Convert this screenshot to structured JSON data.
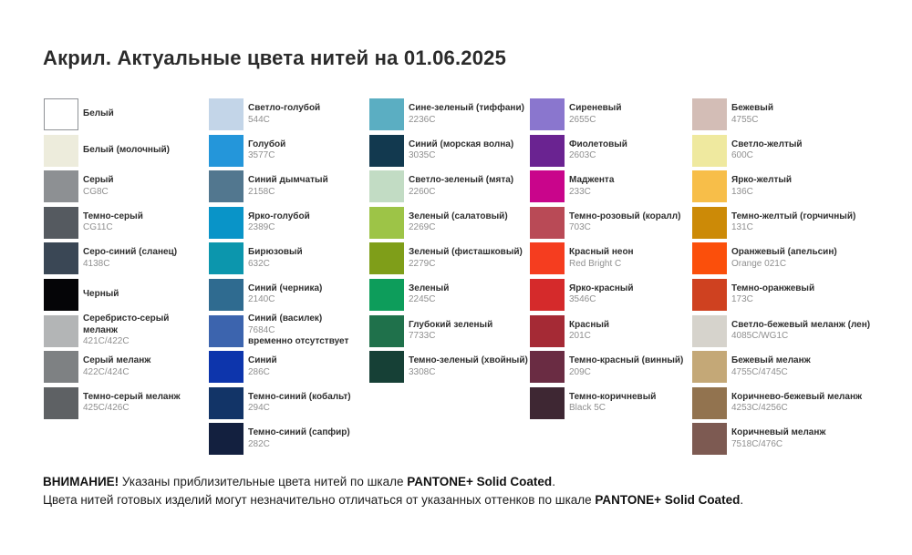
{
  "title": "Акрил. Актуальные цвета нитей на 01.06.2025",
  "palette": {
    "columns": [
      {
        "items": [
          {
            "name": "Белый",
            "code": "",
            "color": "#ffffff",
            "bordered": true
          },
          {
            "name": "Белый (молочный)",
            "code": "",
            "color": "#edecdc"
          },
          {
            "name": "Серый",
            "code": "CG8C",
            "color": "#8d9093"
          },
          {
            "name": "Темно-серый",
            "code": "CG11C",
            "color": "#555a60"
          },
          {
            "name": "Серо-синий (сланец)",
            "code": "4138C",
            "color": "#3a4755"
          },
          {
            "name": "Черный",
            "code": "",
            "color": "#050507"
          },
          {
            "name": "Серебристо-серый меланж",
            "code": "421C/422C",
            "color": "#b3b5b6"
          },
          {
            "name": "Серый меланж",
            "code": "422C/424C",
            "color": "#7e8183"
          },
          {
            "name": "Темно-серый меланж",
            "code": "425C/426C",
            "color": "#5e6164"
          }
        ]
      },
      {
        "items": [
          {
            "name": "Светло-голубой",
            "code": "544C",
            "color": "#c3d5e8"
          },
          {
            "name": "Голубой",
            "code": "3577C",
            "color": "#2496da"
          },
          {
            "name": "Синий дымчатый",
            "code": "2158C",
            "color": "#52778f"
          },
          {
            "name": "Ярко-голубой",
            "code": "2389C",
            "color": "#0994c8"
          },
          {
            "name": "Бирюзовый",
            "code": "632C",
            "color": "#0c96ad"
          },
          {
            "name": "Синий (черника)",
            "code": "2140C",
            "color": "#2f6b90"
          },
          {
            "name": "Синий (василек)",
            "code": "7684C",
            "color": "#3c64ae",
            "note": "временно отсутствует"
          },
          {
            "name": "Синий",
            "code": "286C",
            "color": "#0d35ac"
          },
          {
            "name": "Темно-синий (кобальт)",
            "code": "294C",
            "color": "#123467"
          },
          {
            "name": "Темно-синий (сапфир)",
            "code": "282C",
            "color": "#13203f"
          }
        ]
      },
      {
        "items": [
          {
            "name": "Сине-зеленый (тиффани)",
            "code": "2236C",
            "color": "#5baec2"
          },
          {
            "name": "Синий (морская волна)",
            "code": "3035C",
            "color": "#12394f"
          },
          {
            "name": "Светло-зеленый (мята)",
            "code": "2260C",
            "color": "#c2dcc4"
          },
          {
            "name": "Зеленый (салатовый)",
            "code": "2269C",
            "color": "#9dc447"
          },
          {
            "name": "Зеленый (фисташковый)",
            "code": "2279C",
            "color": "#7f9e19"
          },
          {
            "name": "Зеленый",
            "code": "2245C",
            "color": "#0d9d5b"
          },
          {
            "name": "Глубокий зеленый",
            "code": "7733C",
            "color": "#1f714b"
          },
          {
            "name": "Темно-зеленый (хвойный)",
            "code": "3308C",
            "color": "#164036"
          }
        ]
      },
      {
        "items": [
          {
            "name": "Сиреневый",
            "code": "2655C",
            "color": "#8a76ce"
          },
          {
            "name": "Фиолетовый",
            "code": "2603C",
            "color": "#6a2391"
          },
          {
            "name": "Маджента",
            "code": "233C",
            "color": "#c9058b"
          },
          {
            "name": "Темно-розовый (коралл)",
            "code": "703C",
            "color": "#b94a56"
          },
          {
            "name": "Красный неон",
            "code": "Red Bright C",
            "color": "#f53d1f"
          },
          {
            "name": "Ярко-красный",
            "code": "3546C",
            "color": "#d52a2b"
          },
          {
            "name": "Красный",
            "code": "201C",
            "color": "#a52a35"
          },
          {
            "name": "Темно-красный (винный)",
            "code": "209C",
            "color": "#6a2c43"
          },
          {
            "name": "Темно-коричневый",
            "code": "Black 5C",
            "color": "#3e2733"
          }
        ]
      },
      {
        "items": [
          {
            "name": "Бежевый",
            "code": "4755C",
            "color": "#d3bdb6"
          },
          {
            "name": "Светло-желтый",
            "code": "600C",
            "color": "#efe99f"
          },
          {
            "name": "Ярко-желтый",
            "code": "136C",
            "color": "#f7be49"
          },
          {
            "name": "Темно-желтый (горчичный)",
            "code": "131C",
            "color": "#cc8a07"
          },
          {
            "name": "Оранжевый (апельсин)",
            "code": "Orange 021C",
            "color": "#fb4f0b"
          },
          {
            "name": "Темно-оранжевый",
            "code": "173C",
            "color": "#cf4120"
          },
          {
            "name": "Светло-бежевый меланж (лен)",
            "code": "4085C/WG1C",
            "color": "#d6d3cc"
          },
          {
            "name": "Бежевый меланж",
            "code": "4755C/4745C",
            "color": "#c4a877"
          },
          {
            "name": "Коричнево-бежевый меланж",
            "code": "4253C/4256C",
            "color": "#92734f"
          },
          {
            "name": "Коричневый меланж",
            "code": "7518C/476C",
            "color": "#7d5a52"
          }
        ]
      }
    ]
  },
  "footer": {
    "warning": "ВНИМАНИЕ!",
    "line1_text": " Указаны приблизительные цвета нитей по шкале ",
    "pantone": "PANTONE+ Solid Coated",
    "line1_end": ".",
    "line2_text": "Цвета нитей готовых изделий могут незначительно отличаться от указанных оттенков по шкале ",
    "line2_end": "."
  }
}
